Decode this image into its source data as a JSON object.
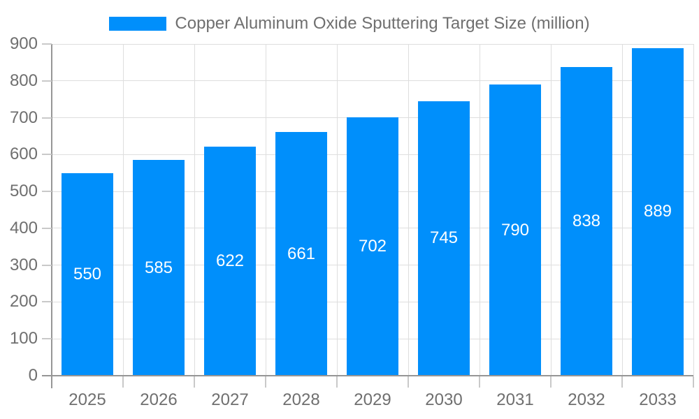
{
  "legend": {
    "label": "Copper Aluminum Oxide Sputtering Target Size (million)",
    "swatch_color": "#008FFB"
  },
  "chart_data": {
    "type": "bar",
    "title": "Copper Aluminum Oxide Sputtering Target Size (million)",
    "categories": [
      "2025",
      "2026",
      "2027",
      "2028",
      "2029",
      "2030",
      "2031",
      "2032",
      "2033"
    ],
    "series": [
      {
        "name": "Copper Aluminum Oxide Sputtering Target Size (million)",
        "values": [
          550,
          585,
          622,
          661,
          702,
          745,
          790,
          838,
          889
        ]
      }
    ],
    "values": [
      550,
      585,
      622,
      661,
      702,
      745,
      790,
      838,
      889
    ],
    "value_labels": [
      "550",
      "585",
      "622",
      "661",
      "702",
      "745",
      "790",
      "838",
      "889"
    ],
    "xlabel": "",
    "ylabel": "",
    "ylim": [
      0,
      900
    ],
    "yticks": [
      0,
      100,
      200,
      300,
      400,
      500,
      600,
      700,
      800,
      900
    ],
    "grid": true,
    "legend_position": "top-center",
    "colors": {
      "bar": "#008FFB",
      "grid": "#dedede",
      "axis": "#969696",
      "tick": "#c9c9c9",
      "axis_label": "#6f6f6f",
      "value_label": "#ffffff",
      "background": "#ffffff"
    }
  }
}
